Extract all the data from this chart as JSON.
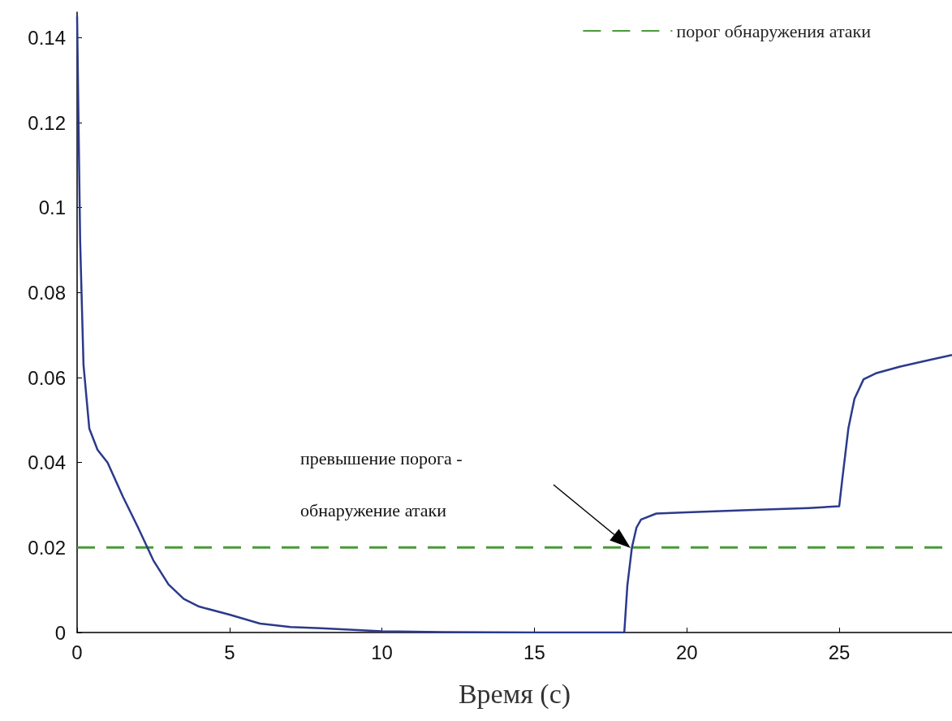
{
  "chart_data": {
    "type": "line",
    "xlabel": "Время (с)",
    "x": [
      0,
      0.1,
      0.21,
      0.4,
      0.67,
      1,
      1.5,
      2,
      2.5,
      3,
      3.5,
      4,
      5,
      6,
      7,
      8,
      10,
      12,
      15,
      17.95,
      18.05,
      18.2,
      18.35,
      18.5,
      19,
      20,
      22,
      24,
      25,
      25.1,
      25.3,
      25.5,
      25.8,
      26.2,
      27,
      28,
      28.7
    ],
    "series": [
      {
        "color": "#2b3a8c",
        "values": [
          0.145,
          0.092,
          0.063,
          0.048,
          0.043,
          0.04,
          0.032,
          0.0247,
          0.017,
          0.0113,
          0.0079,
          0.0061,
          0.0042,
          0.0021,
          0.0013,
          0.001,
          0.0003,
          0.0001,
          0,
          0,
          0.011,
          0.02,
          0.0247,
          0.0266,
          0.028,
          0.0283,
          0.0288,
          0.0293,
          0.0297,
          0.036,
          0.048,
          0.055,
          0.0596,
          0.061,
          0.0626,
          0.0642,
          0.0653
        ]
      }
    ],
    "xlim": [
      0,
      28.7
    ],
    "xticks": [
      0,
      5,
      10,
      15,
      20,
      25
    ],
    "ylim": [
      0,
      0.146
    ],
    "yticks": [
      0,
      0.02,
      0.04,
      0.06,
      0.08,
      0.1,
      0.12,
      0.14
    ],
    "ref_lines": [
      {
        "axis": "y",
        "value": 0.02,
        "label": "порог обнаружения атаки",
        "color": "#4a9a3a",
        "line_style": "dashed"
      }
    ],
    "annotations": [
      "превышение порога -",
      "обнаружение атаки"
    ],
    "grid": false,
    "legend": "top right",
    "marker": "none",
    "line_style": "solid"
  }
}
